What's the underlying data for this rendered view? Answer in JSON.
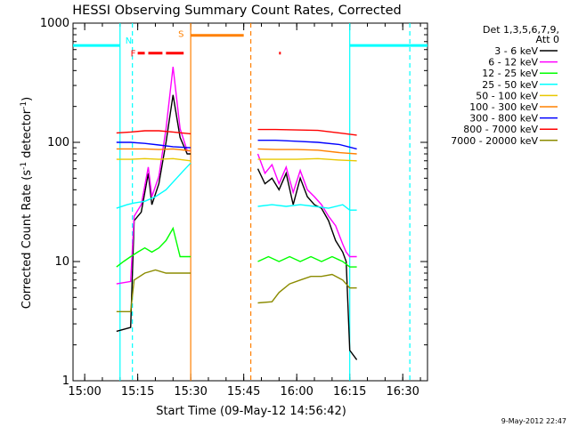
{
  "chart_data": {
    "type": "line",
    "title": "HESSI Observing Summary Count Rates, Corrected",
    "xlabel": "Start Time (09-May-12 14:56:42)",
    "ylabel_main": "Corrected Count Rate (s",
    "ylabel_sup1": "-1",
    "ylabel_mid": " detector",
    "ylabel_sup2": "-1",
    "ylabel_end": ")",
    "ylog": true,
    "ylim": [
      1,
      1000
    ],
    "xlim": [
      "14:56:42",
      "16:37:00"
    ],
    "xticks": [
      "15:00",
      "15:15",
      "15:30",
      "15:45",
      "16:00",
      "16:15",
      "16:30"
    ],
    "yticks": [
      "1",
      "10",
      "100",
      "1000"
    ],
    "legend_header": [
      "Det 1,3,5,6,7,9,",
      "Att 0"
    ],
    "footer_date": "9-May-2012 22:47",
    "flag_labels": {
      "night": "N",
      "flare": "F",
      "saa": "S"
    },
    "series": [
      {
        "name": "3 - 6 keV",
        "color": "#000000",
        "points": [
          [
            "15:09",
            2.6
          ],
          [
            "15:13",
            2.8
          ],
          [
            "15:14",
            22
          ],
          [
            "15:16",
            26
          ],
          [
            "15:18",
            55
          ],
          [
            "15:19",
            30
          ],
          [
            "15:21",
            45
          ],
          [
            "15:23",
            100
          ],
          [
            "15:25",
            250
          ],
          [
            "15:27",
            110
          ],
          [
            "15:29",
            80
          ],
          [
            "15:30",
            80
          ],
          [
            "null",
            0
          ],
          [
            "15:49",
            60
          ],
          [
            "15:51",
            45
          ],
          [
            "15:53",
            50
          ],
          [
            "15:55",
            40
          ],
          [
            "15:57",
            55
          ],
          [
            "15:59",
            30
          ],
          [
            "16:01",
            50
          ],
          [
            "16:03",
            35
          ],
          [
            "16:05",
            30
          ],
          [
            "16:07",
            28
          ],
          [
            "16:09",
            22
          ],
          [
            "16:11",
            15
          ],
          [
            "16:13",
            12
          ],
          [
            "16:14",
            10
          ],
          [
            "16:15",
            1.8
          ],
          [
            "16:17",
            1.5
          ]
        ]
      },
      {
        "name": "6 - 12 keV",
        "color": "#ff00ff",
        "points": [
          [
            "15:09",
            6.5
          ],
          [
            "15:13",
            6.8
          ],
          [
            "15:14",
            24
          ],
          [
            "15:16",
            30
          ],
          [
            "15:18",
            62
          ],
          [
            "15:19",
            35
          ],
          [
            "15:21",
            52
          ],
          [
            "15:23",
            130
          ],
          [
            "15:25",
            430
          ],
          [
            "15:27",
            130
          ],
          [
            "15:29",
            85
          ],
          [
            "15:30",
            85
          ],
          [
            "null",
            0
          ],
          [
            "15:49",
            80
          ],
          [
            "15:51",
            55
          ],
          [
            "15:53",
            65
          ],
          [
            "15:55",
            45
          ],
          [
            "15:57",
            62
          ],
          [
            "15:59",
            38
          ],
          [
            "16:01",
            58
          ],
          [
            "16:03",
            40
          ],
          [
            "16:05",
            35
          ],
          [
            "16:07",
            30
          ],
          [
            "16:09",
            24
          ],
          [
            "16:11",
            20
          ],
          [
            "16:13",
            14
          ],
          [
            "16:14",
            12
          ],
          [
            "16:15",
            11
          ],
          [
            "16:17",
            11
          ]
        ]
      },
      {
        "name": "12 - 25 keV",
        "color": "#00ff00",
        "points": [
          [
            "15:09",
            9
          ],
          [
            "15:11",
            10
          ],
          [
            "15:13",
            11
          ],
          [
            "15:15",
            12
          ],
          [
            "15:17",
            13
          ],
          [
            "15:19",
            12
          ],
          [
            "15:21",
            13
          ],
          [
            "15:23",
            15
          ],
          [
            "15:25",
            19
          ],
          [
            "15:27",
            11
          ],
          [
            "15:29",
            11
          ],
          [
            "15:30",
            11
          ],
          [
            "null",
            0
          ],
          [
            "15:49",
            10
          ],
          [
            "15:52",
            11
          ],
          [
            "15:55",
            10
          ],
          [
            "15:58",
            11
          ],
          [
            "16:01",
            10
          ],
          [
            "16:04",
            11
          ],
          [
            "16:07",
            10
          ],
          [
            "16:10",
            11
          ],
          [
            "16:13",
            10
          ],
          [
            "16:15",
            9
          ],
          [
            "16:17",
            9
          ]
        ]
      },
      {
        "name": "25 - 50 keV",
        "color": "#00ffff",
        "points": [
          [
            "15:09",
            28
          ],
          [
            "15:12",
            30
          ],
          [
            "15:14",
            31
          ],
          [
            "15:17",
            32
          ],
          [
            "15:20",
            35
          ],
          [
            "15:23",
            40
          ],
          [
            "15:26",
            50
          ],
          [
            "15:28",
            58
          ],
          [
            "15:30",
            67
          ],
          [
            "null",
            0
          ],
          [
            "15:49",
            29
          ],
          [
            "15:53",
            30
          ],
          [
            "15:57",
            29
          ],
          [
            "16:01",
            30
          ],
          [
            "16:05",
            29
          ],
          [
            "16:09",
            28
          ],
          [
            "16:13",
            30
          ],
          [
            "16:15",
            27
          ],
          [
            "16:17",
            27
          ]
        ]
      },
      {
        "name": "50 - 100 keV",
        "color": "#e8c800",
        "points": [
          [
            "15:09",
            72
          ],
          [
            "15:13",
            72
          ],
          [
            "15:17",
            73
          ],
          [
            "15:21",
            72
          ],
          [
            "15:25",
            73
          ],
          [
            "15:30",
            70
          ],
          [
            "null",
            0
          ],
          [
            "15:49",
            72
          ],
          [
            "15:54",
            72
          ],
          [
            "16:00",
            72
          ],
          [
            "16:06",
            73
          ],
          [
            "16:12",
            71
          ],
          [
            "16:17",
            70
          ]
        ]
      },
      {
        "name": "100 - 300 keV",
        "color": "#ff8000",
        "points": [
          [
            "15:09",
            88
          ],
          [
            "15:13",
            88
          ],
          [
            "15:17",
            88
          ],
          [
            "15:21",
            87
          ],
          [
            "15:25",
            88
          ],
          [
            "15:30",
            85
          ],
          [
            "null",
            0
          ],
          [
            "15:49",
            88
          ],
          [
            "15:54",
            87
          ],
          [
            "16:00",
            87
          ],
          [
            "16:06",
            86
          ],
          [
            "16:12",
            82
          ],
          [
            "16:17",
            80
          ]
        ]
      },
      {
        "name": "300 - 800 keV",
        "color": "#0000ff",
        "points": [
          [
            "15:09",
            100
          ],
          [
            "15:13",
            100
          ],
          [
            "15:17",
            98
          ],
          [
            "15:21",
            95
          ],
          [
            "15:25",
            92
          ],
          [
            "15:30",
            90
          ],
          [
            "null",
            0
          ],
          [
            "15:49",
            104
          ],
          [
            "15:54",
            104
          ],
          [
            "16:00",
            102
          ],
          [
            "16:06",
            100
          ],
          [
            "16:12",
            96
          ],
          [
            "16:17",
            88
          ]
        ]
      },
      {
        "name": "800 - 7000 keV",
        "color": "#ff0000",
        "points": [
          [
            "15:09",
            120
          ],
          [
            "15:13",
            122
          ],
          [
            "15:17",
            125
          ],
          [
            "15:21",
            125
          ],
          [
            "15:25",
            122
          ],
          [
            "15:30",
            118
          ],
          [
            "null",
            0
          ],
          [
            "15:49",
            128
          ],
          [
            "15:54",
            128
          ],
          [
            "16:00",
            127
          ],
          [
            "16:06",
            126
          ],
          [
            "16:12",
            120
          ],
          [
            "16:17",
            115
          ]
        ]
      },
      {
        "name": "7000 - 20000 keV",
        "color": "#8b8b00",
        "points": [
          [
            "15:09",
            3.8
          ],
          [
            "15:13",
            3.8
          ],
          [
            "15:14",
            7
          ],
          [
            "15:17",
            8
          ],
          [
            "15:20",
            8.5
          ],
          [
            "15:23",
            8
          ],
          [
            "15:26",
            8
          ],
          [
            "15:29",
            8
          ],
          [
            "15:30",
            8
          ],
          [
            "null",
            0
          ],
          [
            "15:49",
            4.5
          ],
          [
            "15:53",
            4.6
          ],
          [
            "15:55",
            5.5
          ],
          [
            "15:58",
            6.5
          ],
          [
            "16:01",
            7
          ],
          [
            "16:04",
            7.5
          ],
          [
            "16:07",
            7.5
          ],
          [
            "16:10",
            7.8
          ],
          [
            "16:13",
            7
          ],
          [
            "16:15",
            6
          ],
          [
            "16:17",
            6
          ]
        ]
      }
    ],
    "flags": {
      "day_night": [
        {
          "kind": "day",
          "color": "#00ffff",
          "start": "14:56:42",
          "end": "15:10",
          "level": 650
        },
        {
          "kind": "night",
          "color": "#00ffff",
          "start": "15:10",
          "end": "16:15",
          "level": null
        },
        {
          "kind": "day",
          "color": "#00ffff",
          "start": "16:15",
          "end": "16:37",
          "level": 650
        }
      ],
      "flare_intervals": [
        {
          "start": "15:15",
          "end": "15:17",
          "color": "#ff0000",
          "level": 560
        },
        {
          "start": "15:18",
          "end": "15:22",
          "color": "#ff0000",
          "level": 560
        },
        {
          "start": "15:23",
          "end": "15:28",
          "color": "#ff0000",
          "level": 560
        },
        {
          "start": "15:55",
          "end": "15:55:30",
          "color": "#ff0000",
          "level": 560
        }
      ],
      "saa_interval": {
        "start": "15:30",
        "end": "15:45",
        "color": "#ff8000",
        "level": 790
      },
      "boundary_lines": [
        {
          "time": "15:10",
          "color": "#00ffff",
          "style": "solid"
        },
        {
          "time": "15:13:30",
          "color": "#00ffff",
          "style": "dashed"
        },
        {
          "time": "15:30",
          "color": "#ff8000",
          "style": "solid"
        },
        {
          "time": "15:47",
          "color": "#ff8000",
          "style": "dashed"
        },
        {
          "time": "16:15",
          "color": "#00ffff",
          "style": "solid"
        },
        {
          "time": "16:32",
          "color": "#00ffff",
          "style": "dashed"
        }
      ]
    }
  }
}
